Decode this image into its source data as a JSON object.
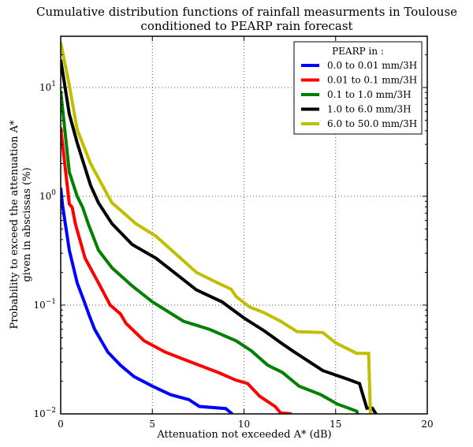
{
  "chart_data": {
    "type": "line",
    "title": "Cumulative distribution functions of rainfall measurments in Toulouse",
    "subtitle": "conditioned to PEARP rain forecast",
    "xlabel": "Attenuation not exceeded A* (dB)",
    "ylabel": "Probability to exceed the attenuation A*",
    "ylabel2": "given in abscissas (%)",
    "xlim": [
      0,
      20
    ],
    "ylim": [
      0.01,
      30
    ],
    "yscale": "log",
    "grid": true,
    "xticks": [
      0,
      5,
      10,
      15,
      20
    ],
    "xtick_labels": [
      "0",
      "5",
      "10",
      "15",
      "20"
    ],
    "yticks": [
      0.01,
      0.1,
      1,
      10
    ],
    "ytick_labels": [
      {
        "base": "10",
        "exp": "−2"
      },
      {
        "base": "10",
        "exp": "−1"
      },
      {
        "base": "10",
        "exp": "0"
      },
      {
        "base": "10",
        "exp": "1"
      }
    ],
    "legend": {
      "title": "PEARP in :",
      "placement": "top-right"
    },
    "series": [
      {
        "name": "0.0 to 0.01 mm/3H",
        "color": "#0000ff",
        "x": [
          0,
          0.1,
          0.47,
          0.9,
          1.29,
          1.55,
          1.85,
          2.57,
          3.26,
          4.0,
          5.0,
          6.0,
          7.0,
          7.56,
          9.0,
          9.36
        ],
        "y": [
          1.2,
          0.83,
          0.32,
          0.16,
          0.107,
          0.081,
          0.06,
          0.037,
          0.028,
          0.022,
          0.018,
          0.015,
          0.0135,
          0.0117,
          0.0112,
          0.01
        ]
      },
      {
        "name": "0.01 to 0.1 mm/3H",
        "color": "#ff0000",
        "x": [
          0,
          0.47,
          0.63,
          0.8,
          1.33,
          2.06,
          2.7,
          3.26,
          3.56,
          4.55,
          5.7,
          7.1,
          8.6,
          9.57,
          10.2,
          10.86,
          11.7,
          12.0,
          12.6
        ],
        "y": [
          4.3,
          0.85,
          0.79,
          0.56,
          0.27,
          0.16,
          0.1,
          0.083,
          0.068,
          0.047,
          0.037,
          0.03,
          0.024,
          0.0204,
          0.019,
          0.0145,
          0.0117,
          0.0102,
          0.01
        ]
      },
      {
        "name": "0.1 to 1.0 mm/3H",
        "color": "#008000",
        "x": [
          0,
          0.47,
          0.9,
          1.2,
          1.5,
          2.06,
          2.8,
          3.9,
          5.0,
          6.7,
          8.1,
          9.57,
          10.4,
          11.3,
          12.1,
          13.0,
          14.2,
          15.1,
          16.15,
          16.2
        ],
        "y": [
          9.3,
          1.67,
          1.0,
          0.79,
          0.56,
          0.32,
          0.22,
          0.15,
          0.107,
          0.071,
          0.06,
          0.047,
          0.038,
          0.028,
          0.024,
          0.018,
          0.015,
          0.0123,
          0.0106,
          0.01
        ]
      },
      {
        "name": "1.0 to 6.0 mm/3H",
        "color": "#000000",
        "x": [
          0,
          0.47,
          0.9,
          1.63,
          2.06,
          2.8,
          3.9,
          5.2,
          7.4,
          8.8,
          10.0,
          11.1,
          12.1,
          12.7,
          14.3,
          15.6,
          16.3,
          16.7,
          17.0,
          17.2
        ],
        "y": [
          18,
          5.7,
          3.1,
          1.26,
          0.87,
          0.56,
          0.36,
          0.27,
          0.138,
          0.107,
          0.076,
          0.058,
          0.044,
          0.0375,
          0.025,
          0.021,
          0.019,
          0.0113,
          0.0113,
          0.01
        ]
      },
      {
        "name": "6.0 to 50.0 mm/3H",
        "color": "#bfbf00",
        "x": [
          0,
          0.47,
          0.9,
          1.63,
          2.6,
          2.8,
          3.9,
          4.1,
          5.2,
          7.4,
          8.4,
          9.3,
          9.57,
          10.3,
          11.1,
          12.0,
          12.9,
          14.3,
          15.0,
          16.15,
          16.8,
          16.9
        ],
        "y": [
          26,
          10.5,
          4.1,
          2.0,
          1.0,
          0.87,
          0.6,
          0.56,
          0.43,
          0.2,
          0.165,
          0.14,
          0.12,
          0.096,
          0.085,
          0.071,
          0.057,
          0.056,
          0.045,
          0.036,
          0.036,
          0.01
        ]
      }
    ]
  }
}
